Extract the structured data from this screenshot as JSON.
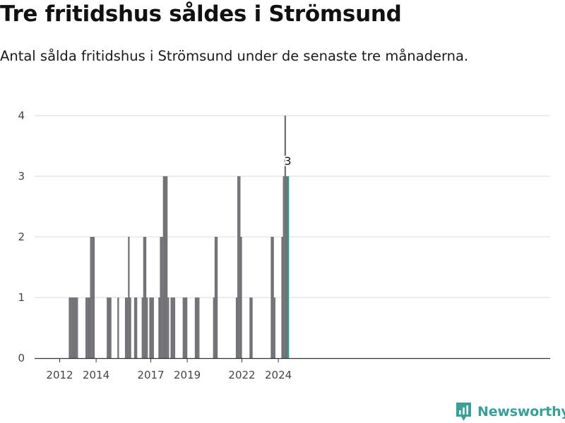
{
  "header": {
    "title": "Tre fritidshus såldes i Strömsund",
    "subtitle": "Antal sålda fritidshus i Strömsund under de senaste tre månaderna."
  },
  "brand": {
    "name": "Newsworthy",
    "icon": "newsworthy-logo-icon"
  },
  "colors": {
    "bar": "#737276",
    "highlight": "#2a9d8f",
    "grid": "#d9d9d9",
    "axis": "#333333",
    "brand": "#3a9f96"
  },
  "chart_data": {
    "type": "bar",
    "title": "",
    "xlabel": "",
    "ylabel": "",
    "ylim": [
      0,
      4
    ],
    "yticks": [
      0,
      1,
      2,
      3,
      4
    ],
    "xticks": [
      {
        "label": "2012",
        "date": "2012-01"
      },
      {
        "label": "2014",
        "date": "2014-01"
      },
      {
        "label": "2017",
        "date": "2017-01"
      },
      {
        "label": "2019",
        "date": "2019-01"
      },
      {
        "label": "2022",
        "date": "2022-01"
      },
      {
        "label": "2024",
        "date": "2024-01"
      }
    ],
    "grid": true,
    "highlight": {
      "date": "2024-07",
      "value": 3,
      "label": "3"
    },
    "series": [
      {
        "points": [
          {
            "date": "2012-07",
            "value": 1
          },
          {
            "date": "2012-08",
            "value": 1
          },
          {
            "date": "2012-09",
            "value": 1
          },
          {
            "date": "2012-10",
            "value": 1
          },
          {
            "date": "2012-11",
            "value": 1
          },
          {
            "date": "2012-12",
            "value": 1
          },
          {
            "date": "2013-06",
            "value": 1
          },
          {
            "date": "2013-07",
            "value": 1
          },
          {
            "date": "2013-08",
            "value": 1
          },
          {
            "date": "2013-09",
            "value": 2
          },
          {
            "date": "2013-10",
            "value": 2
          },
          {
            "date": "2013-11",
            "value": 2
          },
          {
            "date": "2014-08",
            "value": 1
          },
          {
            "date": "2014-09",
            "value": 1
          },
          {
            "date": "2014-10",
            "value": 1
          },
          {
            "date": "2015-03",
            "value": 1
          },
          {
            "date": "2015-08",
            "value": 1
          },
          {
            "date": "2015-09",
            "value": 1
          },
          {
            "date": "2015-10",
            "value": 2
          },
          {
            "date": "2015-11",
            "value": 1
          },
          {
            "date": "2016-02",
            "value": 1
          },
          {
            "date": "2016-03",
            "value": 1
          },
          {
            "date": "2016-07",
            "value": 1
          },
          {
            "date": "2016-08",
            "value": 2
          },
          {
            "date": "2016-09",
            "value": 2
          },
          {
            "date": "2016-10",
            "value": 1
          },
          {
            "date": "2016-12",
            "value": 1
          },
          {
            "date": "2017-01",
            "value": 1
          },
          {
            "date": "2017-02",
            "value": 1
          },
          {
            "date": "2017-06",
            "value": 1
          },
          {
            "date": "2017-07",
            "value": 2
          },
          {
            "date": "2017-08",
            "value": 2
          },
          {
            "date": "2017-09",
            "value": 3
          },
          {
            "date": "2017-10",
            "value": 3
          },
          {
            "date": "2017-11",
            "value": 3
          },
          {
            "date": "2017-12",
            "value": 1
          },
          {
            "date": "2018-02",
            "value": 1
          },
          {
            "date": "2018-03",
            "value": 1
          },
          {
            "date": "2018-04",
            "value": 1
          },
          {
            "date": "2018-10",
            "value": 1
          },
          {
            "date": "2018-11",
            "value": 1
          },
          {
            "date": "2018-12",
            "value": 1
          },
          {
            "date": "2019-06",
            "value": 1
          },
          {
            "date": "2019-07",
            "value": 1
          },
          {
            "date": "2019-08",
            "value": 1
          },
          {
            "date": "2020-06",
            "value": 1
          },
          {
            "date": "2020-07",
            "value": 2
          },
          {
            "date": "2020-08",
            "value": 2
          },
          {
            "date": "2021-09",
            "value": 1
          },
          {
            "date": "2021-10",
            "value": 3
          },
          {
            "date": "2021-11",
            "value": 3
          },
          {
            "date": "2021-12",
            "value": 2
          },
          {
            "date": "2022-06",
            "value": 1
          },
          {
            "date": "2022-07",
            "value": 1
          },
          {
            "date": "2023-08",
            "value": 2
          },
          {
            "date": "2023-09",
            "value": 2
          },
          {
            "date": "2023-10",
            "value": 1
          },
          {
            "date": "2024-03",
            "value": 2
          },
          {
            "date": "2024-04",
            "value": 3
          },
          {
            "date": "2024-05",
            "value": 4
          },
          {
            "date": "2024-06",
            "value": 3
          },
          {
            "date": "2024-07",
            "value": 3
          }
        ]
      }
    ]
  }
}
